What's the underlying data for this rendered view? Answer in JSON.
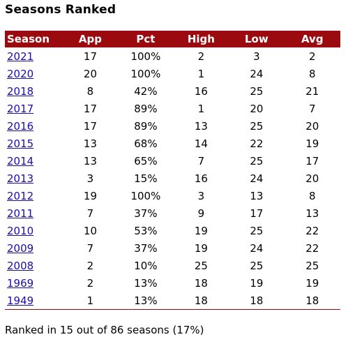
{
  "title": "Seasons Ranked",
  "table": {
    "headers": [
      "Season",
      "App",
      "Pct",
      "High",
      "Low",
      "Avg"
    ],
    "rows": [
      {
        "season": "2021",
        "app": "17",
        "pct": "100%",
        "high": "2",
        "low": "3",
        "avg": "2"
      },
      {
        "season": "2020",
        "app": "20",
        "pct": "100%",
        "high": "1",
        "low": "24",
        "avg": "8"
      },
      {
        "season": "2018",
        "app": "8",
        "pct": "42%",
        "high": "16",
        "low": "25",
        "avg": "21"
      },
      {
        "season": "2017",
        "app": "17",
        "pct": "89%",
        "high": "1",
        "low": "20",
        "avg": "7"
      },
      {
        "season": "2016",
        "app": "17",
        "pct": "89%",
        "high": "13",
        "low": "25",
        "avg": "20"
      },
      {
        "season": "2015",
        "app": "13",
        "pct": "68%",
        "high": "14",
        "low": "22",
        "avg": "19"
      },
      {
        "season": "2014",
        "app": "13",
        "pct": "65%",
        "high": "7",
        "low": "25",
        "avg": "17"
      },
      {
        "season": "2013",
        "app": "3",
        "pct": "15%",
        "high": "16",
        "low": "24",
        "avg": "20"
      },
      {
        "season": "2012",
        "app": "19",
        "pct": "100%",
        "high": "3",
        "low": "13",
        "avg": "8"
      },
      {
        "season": "2011",
        "app": "7",
        "pct": "37%",
        "high": "9",
        "low": "17",
        "avg": "13"
      },
      {
        "season": "2010",
        "app": "10",
        "pct": "53%",
        "high": "19",
        "low": "25",
        "avg": "22"
      },
      {
        "season": "2009",
        "app": "7",
        "pct": "37%",
        "high": "19",
        "low": "24",
        "avg": "22"
      },
      {
        "season": "2008",
        "app": "2",
        "pct": "10%",
        "high": "25",
        "low": "25",
        "avg": "25"
      },
      {
        "season": "1969",
        "app": "2",
        "pct": "13%",
        "high": "18",
        "low": "19",
        "avg": "19"
      },
      {
        "season": "1949",
        "app": "1",
        "pct": "13%",
        "high": "18",
        "low": "18",
        "avg": "18"
      }
    ]
  },
  "summary": "Ranked in 15 out of 86 seasons (17%)",
  "colors": {
    "header_bg": "#9b0a0e",
    "header_text": "#ffffff",
    "link": "#1a0dab"
  }
}
